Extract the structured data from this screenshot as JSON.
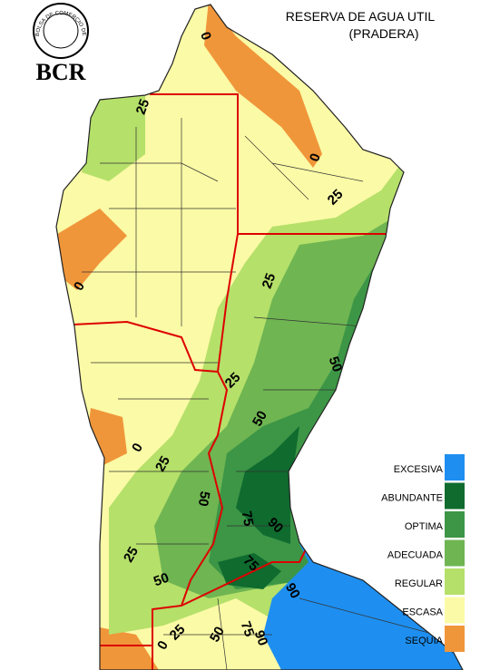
{
  "header": {
    "logo_text": "BOLSA DE COMERCIO DE ROSARIO",
    "brand": "BCR"
  },
  "title": [
    "RESERVA DE AGUA UTIL",
    "(PRADERA)"
  ],
  "legend": [
    {
      "label": "EXCESIVA",
      "color": "#1e8ff0"
    },
    {
      "label": "ABUNDANTE",
      "color": "#0f6b2e"
    },
    {
      "label": "OPTIMA",
      "color": "#3c9646"
    },
    {
      "label": "ADECUADA",
      "color": "#6fb552"
    },
    {
      "label": "REGULAR",
      "color": "#b5e06a"
    },
    {
      "label": "ESCASA",
      "color": "#fbfaa6"
    },
    {
      "label": "SEQUIA",
      "color": "#f0963a"
    }
  ],
  "contour_labels": [
    "0",
    "0",
    "0",
    "0",
    "0",
    "25",
    "25",
    "25",
    "25",
    "25",
    "25",
    "25",
    "50",
    "50",
    "50",
    "50",
    "50",
    "75",
    "75",
    "75",
    "90",
    "90",
    "90"
  ]
}
